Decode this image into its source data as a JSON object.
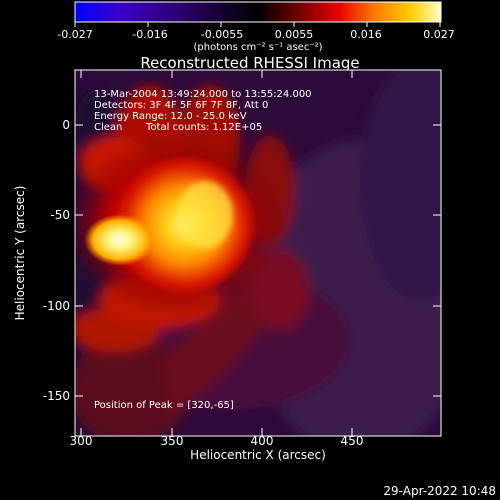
{
  "chart_data": {
    "type": "heatmap",
    "title": "Reconstructed RHESSI Image",
    "xlabel": "Heliocentric X (arcsec)",
    "ylabel": "Heliocentric Y (arcsec)",
    "xlim": [
      297,
      490
    ],
    "ylim": [
      -168,
      30
    ],
    "x_ticks": [
      300,
      350,
      400,
      450
    ],
    "y_ticks": [
      0,
      -50,
      -100,
      -150
    ],
    "colorbar": {
      "range": [
        -0.027,
        0.027
      ],
      "ticks": [
        "-0.027",
        "-0.016",
        "-0.0055",
        "0.0055",
        "0.016",
        "0.027"
      ],
      "label": "(photons cm⁻² s⁻¹ asec⁻²)",
      "colormap": [
        "#0000ff",
        "#3a00cc",
        "#2a0066",
        "#000000",
        "#7a0000",
        "#e80000",
        "#ff7a00",
        "#ffd000",
        "#ffffcc"
      ]
    },
    "annotations": [
      "13-Mar-2004 13:49:24.000 to 13:55:24.000",
      "Detectors: 3F 4F 5F 6F 7F 8F, Att 0",
      "Energy Range: 12.0 - 25.0 keV",
      "Clean",
      "Total counts: 1.12E+05",
      "Position of Peak = [320,-65]"
    ],
    "peak": {
      "x": 320,
      "y": -65
    },
    "timestamp": "29-Apr-2022 10:48"
  }
}
